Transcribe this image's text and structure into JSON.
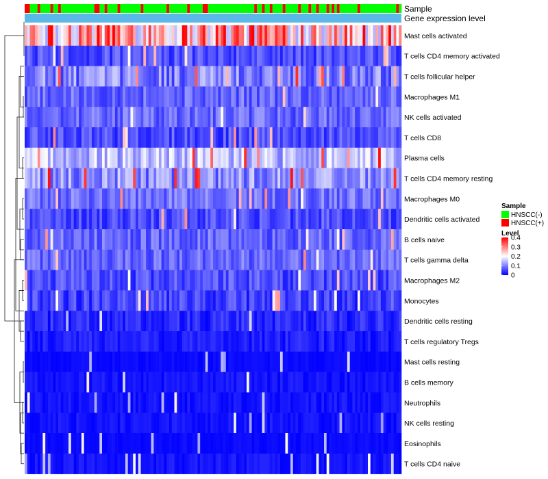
{
  "chart_data": {
    "type": "heatmap",
    "annotation_rows": [
      "Sample",
      "Gene expression level"
    ],
    "rows": [
      "Mast cells activated",
      "T cells CD4 memory activated",
      "T cells follicular helper",
      "Macrophages M1",
      "NK cells activated",
      "T cells CD8",
      "Plasma cells",
      "T cells CD4 memory resting",
      "Macrophages M0",
      "Dendritic cells activated",
      "B cells naive",
      "T cells gamma delta",
      "Macrophages M2",
      "Monocytes",
      "Dendritic cells resting",
      "T cells regulatory  Tregs",
      "Mast cells resting",
      "B cells memory",
      "Neutrophils",
      "NK cells resting",
      "Eosinophils",
      "T cells CD4 naive"
    ],
    "row_mean_level": [
      0.28,
      0.06,
      0.1,
      0.08,
      0.08,
      0.06,
      0.15,
      0.11,
      0.09,
      0.06,
      0.08,
      0.08,
      0.06,
      0.05,
      0.04,
      0.03,
      0.01,
      0.02,
      0.02,
      0.02,
      0.01,
      0.02
    ],
    "n_samples": 146,
    "sample_groups_excerpt": [
      "HNSCC(-)",
      "HNSCC(+)"
    ],
    "legend": {
      "sample": {
        "title": "Sample",
        "items": [
          {
            "label": "HNSCC(-)",
            "color": "#00ff00"
          },
          {
            "label": "HNSCC(+)",
            "color": "#ff0000"
          }
        ]
      },
      "level": {
        "title": "Level",
        "ticks": [
          "0.4",
          "0.3",
          "0.2",
          "0.1",
          "0"
        ],
        "range": [
          0,
          0.4
        ],
        "colors": [
          "#0000ff",
          "#ffffff",
          "#ff0000"
        ]
      }
    },
    "gene_expression_color": "#5cb8e8",
    "dendrogram": "row-clustered"
  }
}
